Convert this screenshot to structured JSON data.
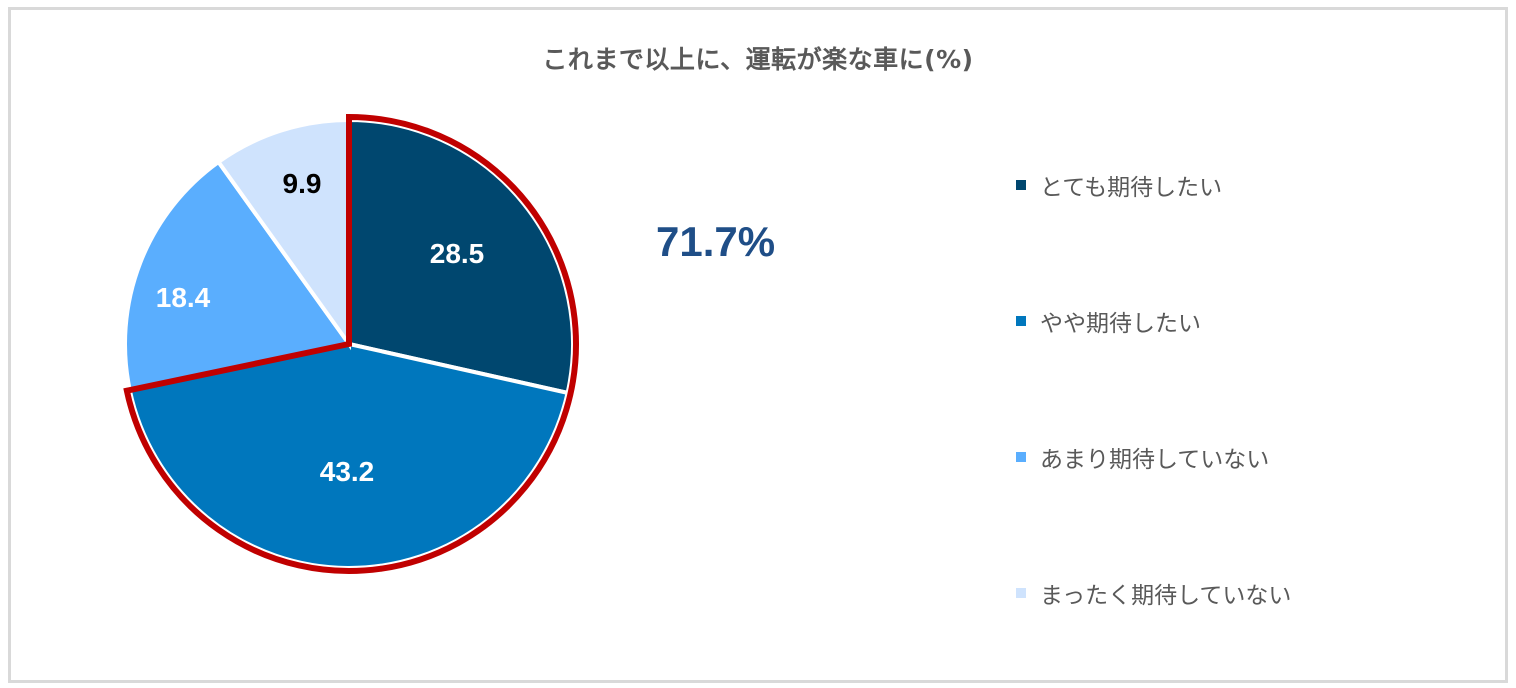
{
  "chart_data": {
    "type": "pie",
    "title": "これまで以上に、運転が楽な車に(%)",
    "categories": [
      "とても期待したい",
      "やや期待したい",
      "あまり期待していない",
      "まったく期待していない"
    ],
    "values": [
      28.5,
      43.2,
      18.4,
      9.9
    ],
    "colors": [
      "#00476f",
      "#0077bd",
      "#5aaefe",
      "#cfe3fd"
    ],
    "label_colors": [
      "#ffffff",
      "#ffffff",
      "#ffffff",
      "#000000"
    ],
    "start_angle_deg": 0,
    "direction": "clockwise",
    "highlight": {
      "slices": [
        0,
        1
      ],
      "outline_color": "#c00000",
      "annotation": "71.7%",
      "annotation_color": "#1f4e87"
    },
    "legend_position": "right"
  },
  "title": "これまで以上に、運転が楽な車に(%)",
  "labels": {
    "s0": "28.5",
    "s1": "43.2",
    "s2": "18.4",
    "s3": "9.9"
  },
  "highlight_text": "71.7%",
  "legend": [
    {
      "label": "とても期待したい",
      "color": "#00476f"
    },
    {
      "label": "やや期待したい",
      "color": "#0077bd"
    },
    {
      "label": "あまり期待していない",
      "color": "#5aaefe"
    },
    {
      "label": "まったく期待していない",
      "color": "#cfe3fd"
    }
  ]
}
